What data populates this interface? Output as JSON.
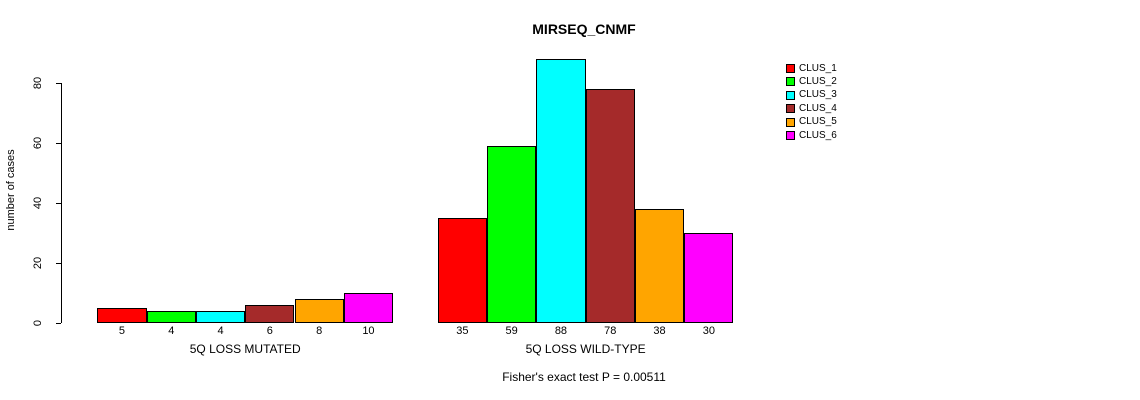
{
  "title": "MIRSEQ_CNMF",
  "footer": "Fisher's exact test P = 0.00511",
  "y_axis": {
    "label": "number of cases",
    "ticks": [
      0,
      20,
      40,
      60,
      80
    ]
  },
  "legend": {
    "items": [
      {
        "label": "CLUS_1",
        "color": "#FF0000"
      },
      {
        "label": "CLUS_2",
        "color": "#00FF00"
      },
      {
        "label": "CLUS_3",
        "color": "#00FFFF"
      },
      {
        "label": "CLUS_4",
        "color": "#A52A2A"
      },
      {
        "label": "CLUS_5",
        "color": "#FFA500"
      },
      {
        "label": "CLUS_6",
        "color": "#FF00FF"
      }
    ]
  },
  "chart_data": {
    "type": "bar",
    "title": "MIRSEQ_CNMF",
    "xlabel": "",
    "ylabel": "number of cases",
    "ylim": [
      0,
      88
    ],
    "y_ticks": [
      0,
      20,
      40,
      60,
      80
    ],
    "grid": false,
    "legend_position": "top-right",
    "legend_entries": [
      "CLUS_1",
      "CLUS_2",
      "CLUS_3",
      "CLUS_4",
      "CLUS_5",
      "CLUS_6"
    ],
    "series_colors": [
      "#FF0000",
      "#00FF00",
      "#00FFFF",
      "#A52A2A",
      "#FFA500",
      "#FF00FF"
    ],
    "groups": [
      {
        "label": "5Q LOSS MUTATED",
        "values": [
          5,
          4,
          4,
          6,
          8,
          10
        ]
      },
      {
        "label": "5Q LOSS WILD-TYPE",
        "values": [
          35,
          59,
          88,
          78,
          38,
          30
        ]
      }
    ],
    "bar_value_labels_shown": true,
    "annotation": "Fisher's exact test P = 0.00511"
  }
}
